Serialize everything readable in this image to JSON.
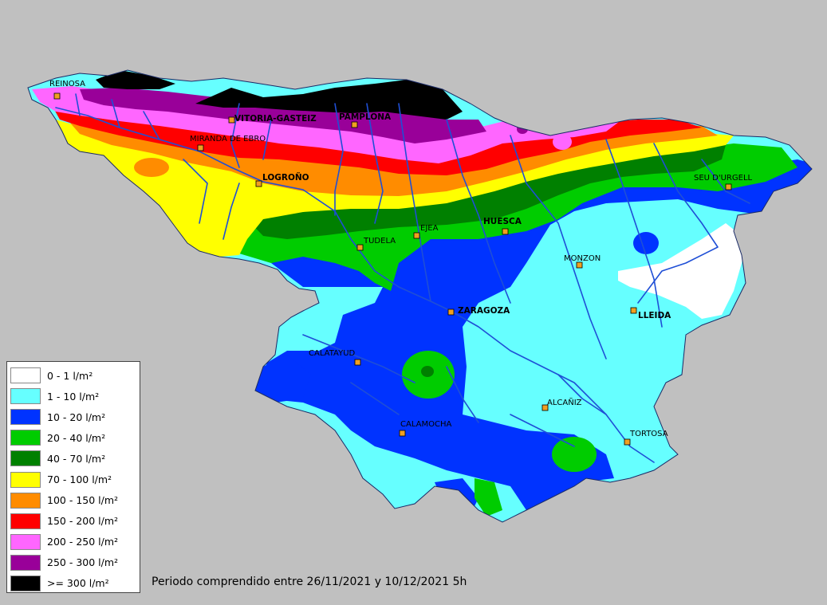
{
  "caption": "Periodo comprendido entre 26/11/2021 y 10/12/2021 5h",
  "legend": [
    {
      "label": "0 - 1 l/m²",
      "color": "#ffffff"
    },
    {
      "label": "1 - 10 l/m²",
      "color": "#66ffff"
    },
    {
      "label": "10 - 20 l/m²",
      "color": "#0033ff"
    },
    {
      "label": "20 - 40 l/m²",
      "color": "#00cc00"
    },
    {
      "label": "40 - 70 l/m²",
      "color": "#008000"
    },
    {
      "label": "70 - 100 l/m²",
      "color": "#ffff00"
    },
    {
      "label": "100 - 150 l/m²",
      "color": "#ff8c00"
    },
    {
      "label": "150 - 200 l/m²",
      "color": "#ff0000"
    },
    {
      "label": "200 - 250 l/m²",
      "color": "#ff66ff"
    },
    {
      "label": "250 - 300 l/m²",
      "color": "#990099"
    },
    {
      "label": ">= 300 l/m²",
      "color": "#000000"
    }
  ],
  "cities": [
    {
      "name": "REINOSA"
    },
    {
      "name": "VITORIA-GASTEIZ"
    },
    {
      "name": "PAMPLONA"
    },
    {
      "name": "MIRANDA DE EBRO"
    },
    {
      "name": "LOGROÑO"
    },
    {
      "name": "SEU D'URGELL"
    },
    {
      "name": "HUESCA"
    },
    {
      "name": "EJEA"
    },
    {
      "name": "TUDELA"
    },
    {
      "name": "MONZON"
    },
    {
      "name": "ZARAGOZA"
    },
    {
      "name": "LLEIDA"
    },
    {
      "name": "CALATAYUD"
    },
    {
      "name": "ALCAÑIZ"
    },
    {
      "name": "CALAMOCHA"
    },
    {
      "name": "TORTOSA"
    }
  ],
  "colors": {
    "background": "#c0c0c0",
    "river": "#1f4fd6",
    "marker": "#f0a020"
  }
}
